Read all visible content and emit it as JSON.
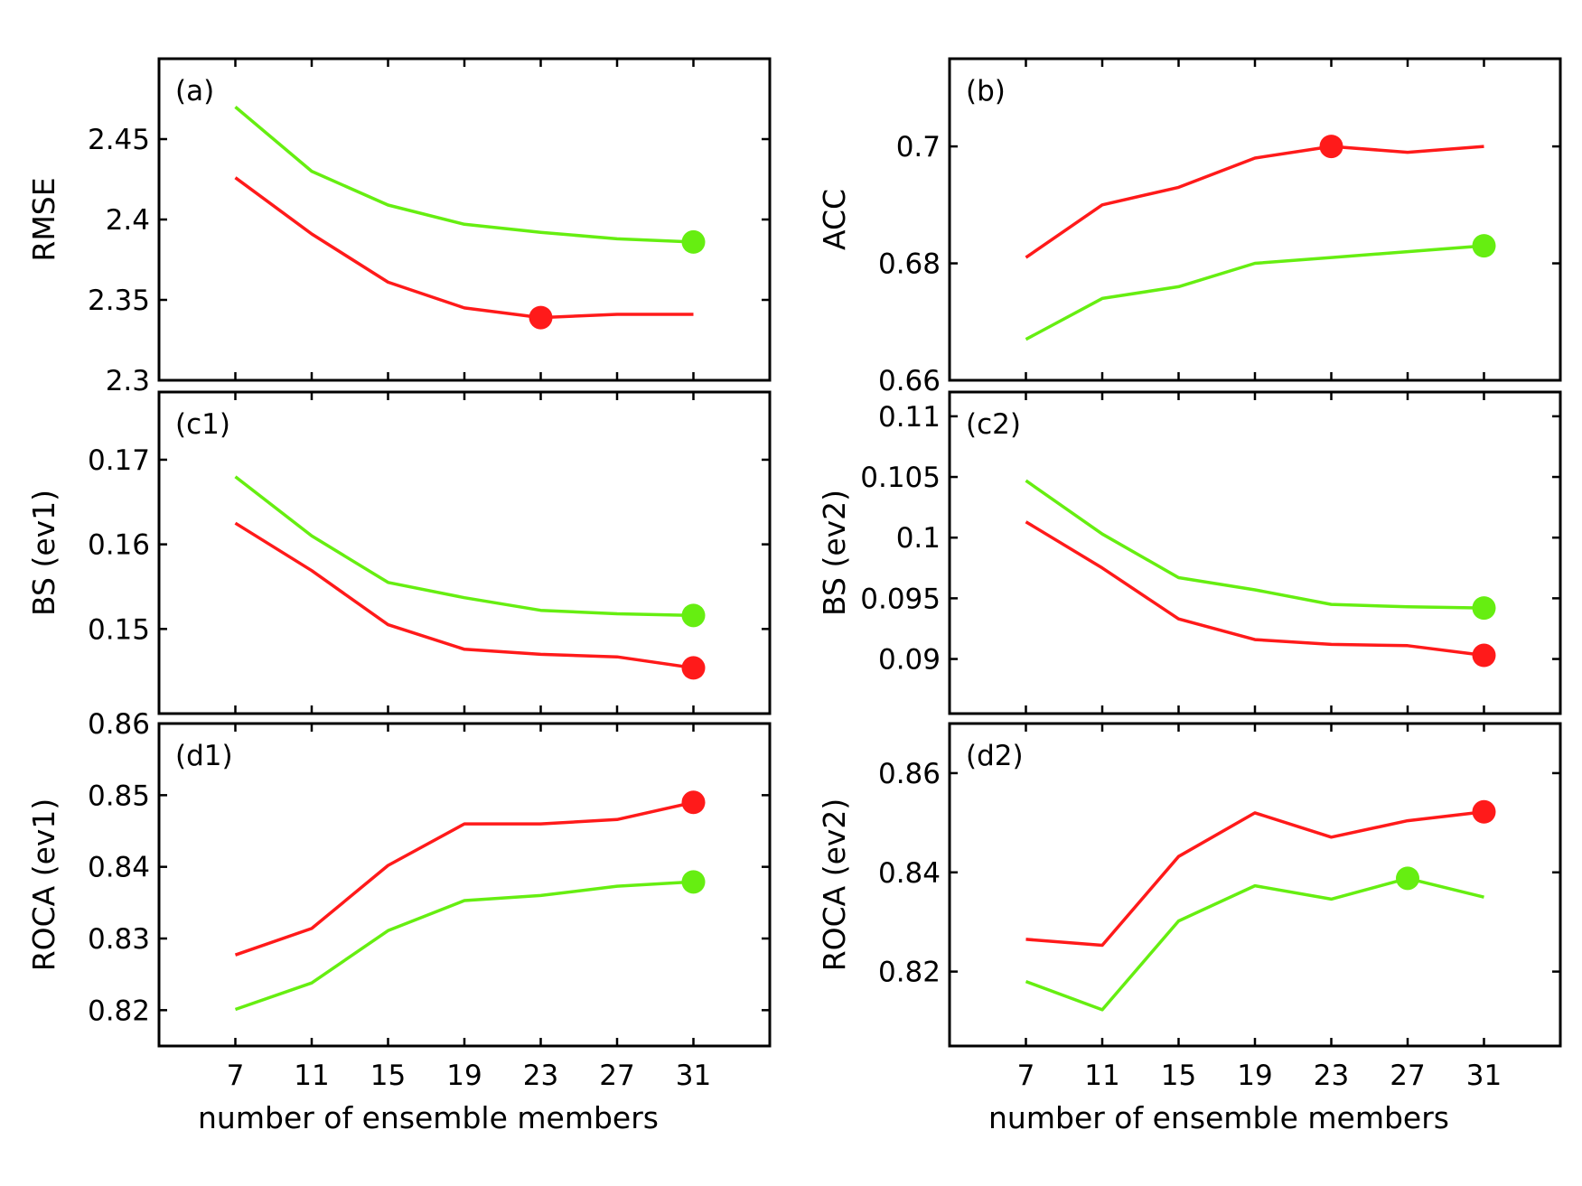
{
  "colors": {
    "red": "#ff1a1a",
    "green": "#66ee11",
    "axis": "#000000"
  },
  "chart_data": [
    {
      "id": "a",
      "type": "line",
      "panel_label": "(a)",
      "ylabel": "RMSE",
      "xlabel": "",
      "x": [
        7,
        11,
        15,
        19,
        23,
        27,
        31
      ],
      "xlim": [
        3,
        35
      ],
      "ylim": [
        2.3,
        2.5
      ],
      "yticks": [
        2.3,
        2.35,
        2.4,
        2.45
      ],
      "ytick_labels": [
        "2.3",
        "2.35",
        "2.4",
        "2.45"
      ],
      "xticks": [],
      "xtick_labels": [],
      "series": [
        {
          "color": "green",
          "values": [
            2.47,
            2.43,
            2.409,
            2.397,
            2.392,
            2.388,
            2.386
          ],
          "marker_x": 31,
          "marker_y": 2.386
        },
        {
          "color": "red",
          "values": [
            2.426,
            2.391,
            2.361,
            2.345,
            2.339,
            2.341,
            2.341
          ],
          "marker_x": 23,
          "marker_y": 2.339
        }
      ]
    },
    {
      "id": "b",
      "type": "line",
      "panel_label": "(b)",
      "ylabel": "ACC",
      "xlabel": "",
      "x": [
        7,
        11,
        15,
        19,
        23,
        27,
        31
      ],
      "xlim": [
        3,
        35
      ],
      "ylim": [
        0.66,
        0.715
      ],
      "yticks": [
        0.66,
        0.68,
        0.7
      ],
      "ytick_labels": [
        "0.66",
        "0.68",
        "0.7"
      ],
      "xticks": [],
      "xtick_labels": [],
      "series": [
        {
          "color": "red",
          "values": [
            0.681,
            0.69,
            0.693,
            0.698,
            0.7,
            0.699,
            0.7
          ],
          "marker_x": 23,
          "marker_y": 0.7
        },
        {
          "color": "green",
          "values": [
            0.667,
            0.674,
            0.676,
            0.68,
            0.681,
            0.682,
            0.683
          ],
          "marker_x": 31,
          "marker_y": 0.683
        }
      ]
    },
    {
      "id": "c1",
      "type": "line",
      "panel_label": "(c1)",
      "ylabel": "BS (ev1)",
      "xlabel": "",
      "x": [
        7,
        11,
        15,
        19,
        23,
        27,
        31
      ],
      "xlim": [
        3,
        35
      ],
      "ylim": [
        0.14,
        0.178
      ],
      "yticks": [
        0.15,
        0.16,
        0.17
      ],
      "ytick_labels": [
        "0.15",
        "0.16",
        "0.17"
      ],
      "xticks": [],
      "xtick_labels": [],
      "series": [
        {
          "color": "green",
          "values": [
            0.168,
            0.161,
            0.1555,
            0.1537,
            0.1522,
            0.1518,
            0.1516
          ],
          "marker_x": 31,
          "marker_y": 0.1516
        },
        {
          "color": "red",
          "values": [
            0.1625,
            0.1569,
            0.1505,
            0.1476,
            0.147,
            0.1467,
            0.1454
          ],
          "marker_x": 31,
          "marker_y": 0.1454
        }
      ]
    },
    {
      "id": "c2",
      "type": "line",
      "panel_label": "(c2)",
      "ylabel": "BS (ev2)",
      "xlabel": "",
      "x": [
        7,
        11,
        15,
        19,
        23,
        27,
        31
      ],
      "xlim": [
        3,
        35
      ],
      "ylim": [
        0.0855,
        0.112
      ],
      "yticks": [
        0.09,
        0.095,
        0.1,
        0.105,
        0.11
      ],
      "ytick_labels": [
        "0.09",
        "0.095",
        "0.1",
        "0.105",
        "0.11"
      ],
      "xticks": [],
      "xtick_labels": [],
      "series": [
        {
          "color": "green",
          "values": [
            0.1047,
            0.1003,
            0.0967,
            0.0957,
            0.0945,
            0.0943,
            0.0942
          ],
          "marker_x": 31,
          "marker_y": 0.0942
        },
        {
          "color": "red",
          "values": [
            0.1013,
            0.0975,
            0.0933,
            0.0916,
            0.0912,
            0.0911,
            0.0903
          ],
          "marker_x": 31,
          "marker_y": 0.0903
        }
      ]
    },
    {
      "id": "d1",
      "type": "line",
      "panel_label": "(d1)",
      "ylabel": "ROCA (ev1)",
      "xlabel": "number of ensemble members",
      "x": [
        7,
        11,
        15,
        19,
        23,
        27,
        31
      ],
      "xlim": [
        3,
        35
      ],
      "ylim": [
        0.815,
        0.86
      ],
      "yticks": [
        0.82,
        0.83,
        0.84,
        0.85,
        0.86
      ],
      "ytick_labels": [
        "0.82",
        "0.83",
        "0.84",
        "0.85",
        "0.86"
      ],
      "xticks": [
        7,
        11,
        15,
        19,
        23,
        27,
        31
      ],
      "xtick_labels": [
        "7",
        "11",
        "15",
        "19",
        "23",
        "27",
        "31"
      ],
      "series": [
        {
          "color": "red",
          "values": [
            0.8277,
            0.8314,
            0.8402,
            0.846,
            0.846,
            0.8466,
            0.849
          ],
          "marker_x": 31,
          "marker_y": 0.849
        },
        {
          "color": "green",
          "values": [
            0.8201,
            0.8238,
            0.8311,
            0.8353,
            0.836,
            0.8373,
            0.8379
          ],
          "marker_x": 31,
          "marker_y": 0.8379
        }
      ]
    },
    {
      "id": "d2",
      "type": "line",
      "panel_label": "(d2)",
      "ylabel": "ROCA (ev2)",
      "xlabel": "number of ensemble members",
      "x": [
        7,
        11,
        15,
        19,
        23,
        27,
        31
      ],
      "xlim": [
        3,
        35
      ],
      "ylim": [
        0.805,
        0.87
      ],
      "yticks": [
        0.82,
        0.84,
        0.86
      ],
      "ytick_labels": [
        "0.82",
        "0.84",
        "0.86"
      ],
      "xticks": [
        7,
        11,
        15,
        19,
        23,
        27,
        31
      ],
      "xtick_labels": [
        "7",
        "11",
        "15",
        "19",
        "23",
        "27",
        "31"
      ],
      "series": [
        {
          "color": "red",
          "values": [
            0.8265,
            0.8253,
            0.8432,
            0.852,
            0.8471,
            0.8504,
            0.8522
          ],
          "marker_x": 31,
          "marker_y": 0.8522
        },
        {
          "color": "green",
          "values": [
            0.818,
            0.8123,
            0.8302,
            0.8373,
            0.8346,
            0.8388,
            0.835
          ],
          "marker_x": 27,
          "marker_y": 0.8388
        }
      ]
    }
  ]
}
